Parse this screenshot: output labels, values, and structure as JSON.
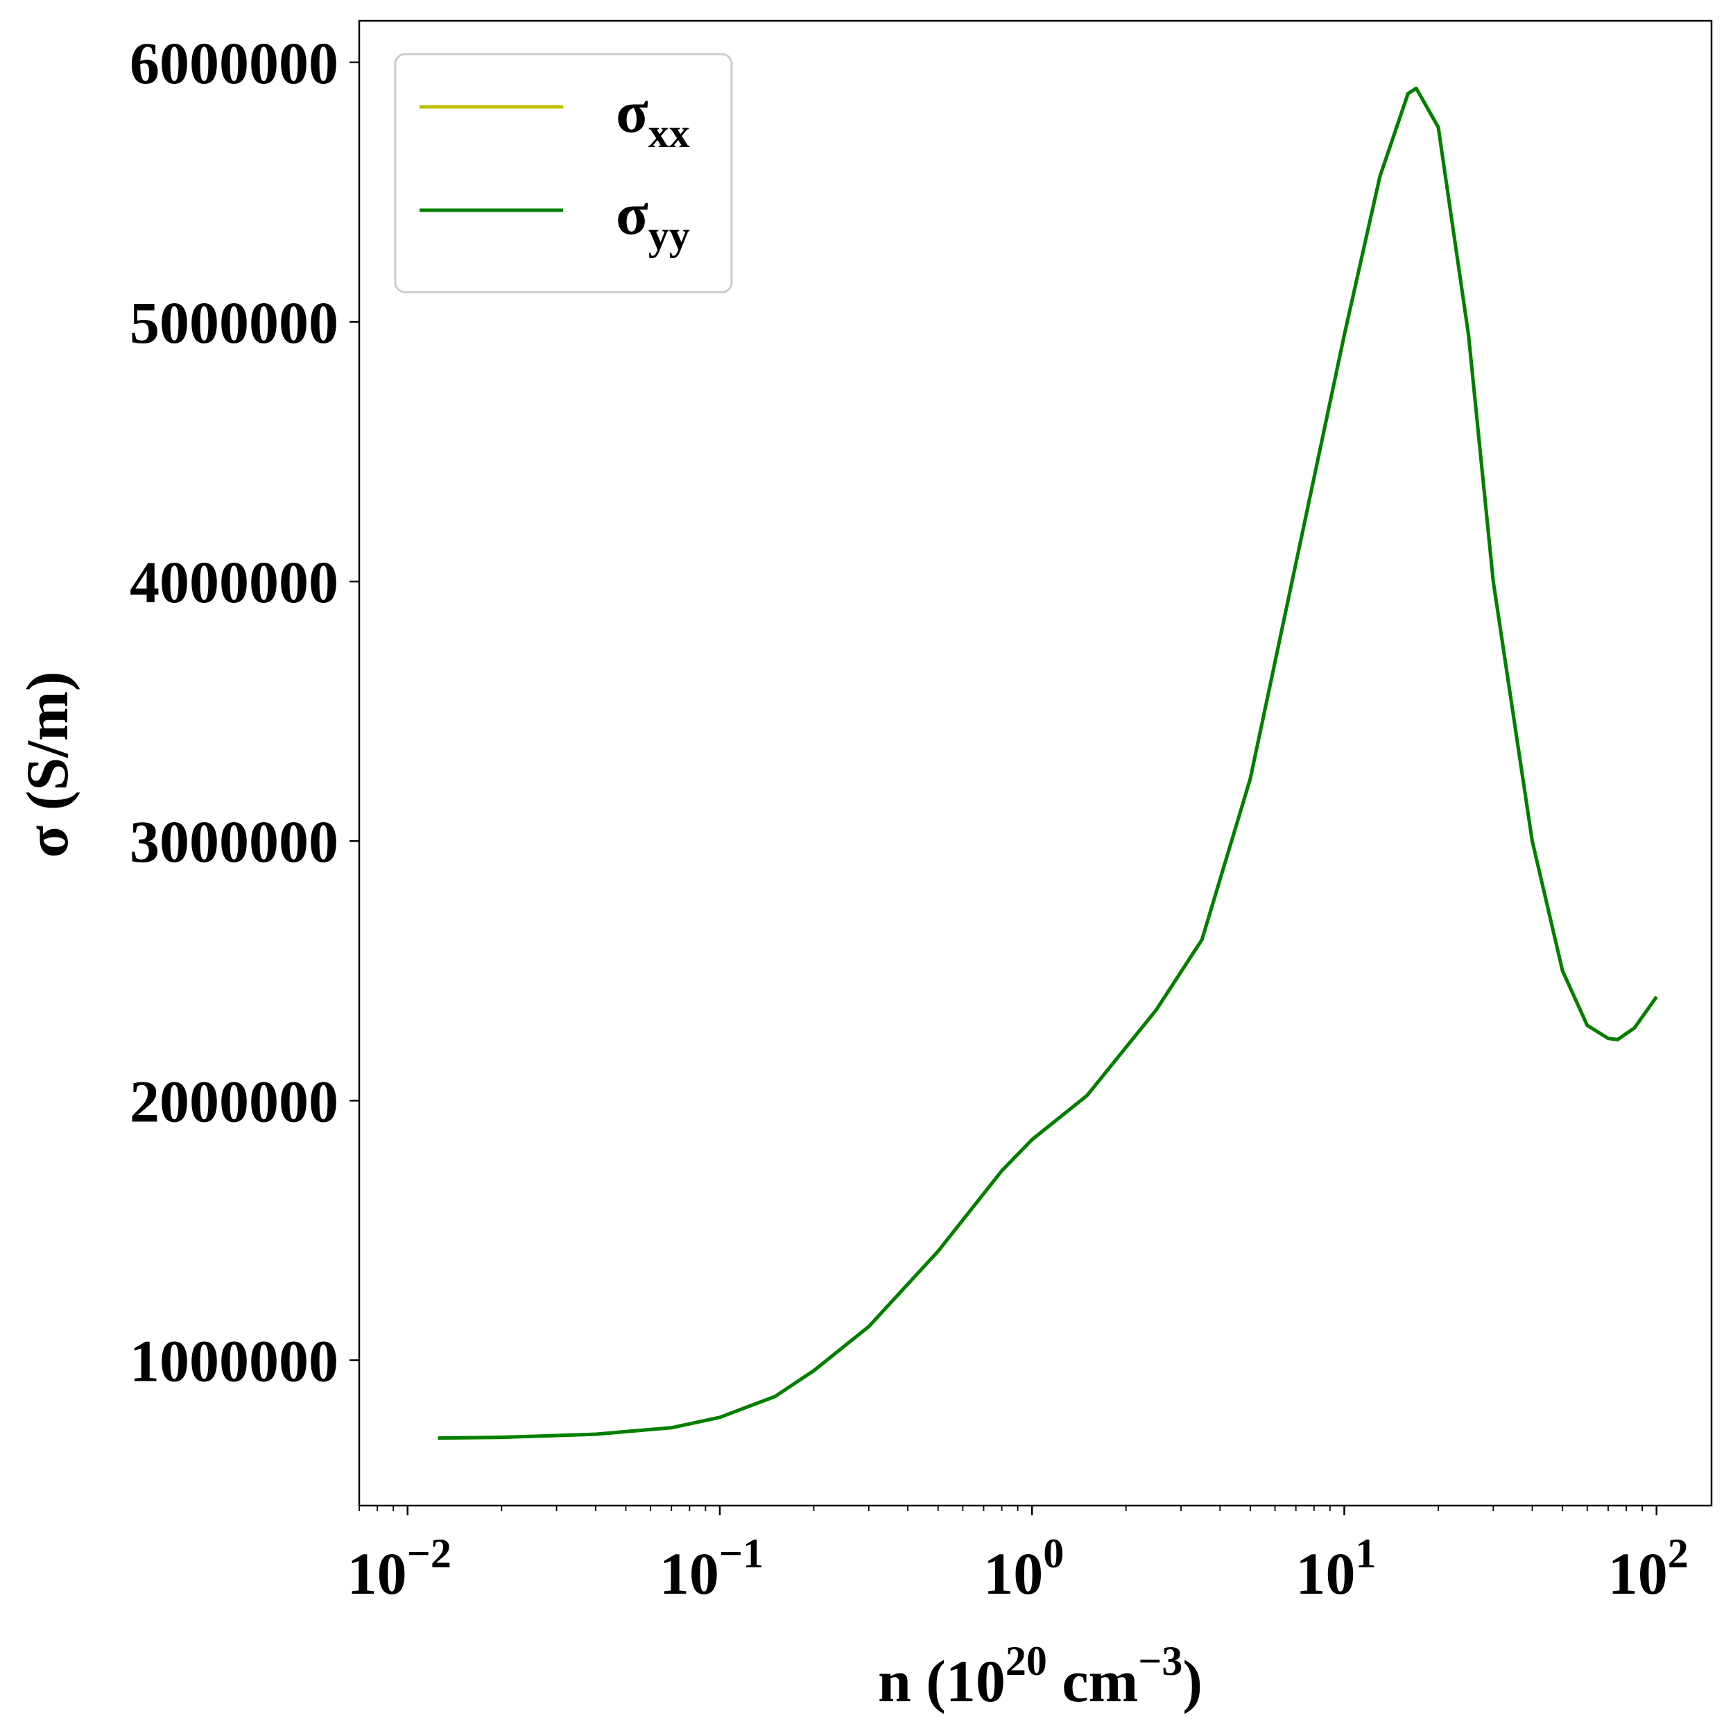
{
  "chart_data": {
    "type": "line",
    "title": "",
    "xlabel": {
      "base": "n (10",
      "sup1": "20",
      "mid": " cm",
      "sup2": "−3",
      "end": ")"
    },
    "ylabel": "σ (S/m)",
    "xscale": "log",
    "xlim": [
      0.007,
      150
    ],
    "ylim": [
      440000,
      6160000
    ],
    "grid": false,
    "legend_position": "top-left",
    "x_ticks": [
      {
        "value": 0.01,
        "base": "10",
        "exp": "−2"
      },
      {
        "value": 0.1,
        "base": "10",
        "exp": "−1"
      },
      {
        "value": 1,
        "base": "10",
        "exp": "0"
      },
      {
        "value": 10,
        "base": "10",
        "exp": "1"
      },
      {
        "value": 100,
        "base": "10",
        "exp": "2"
      }
    ],
    "y_ticks": [
      {
        "value": 1000000,
        "label": "1000000"
      },
      {
        "value": 2000000,
        "label": "2000000"
      },
      {
        "value": 3000000,
        "label": "3000000"
      },
      {
        "value": 4000000,
        "label": "4000000"
      },
      {
        "value": 5000000,
        "label": "5000000"
      },
      {
        "value": 6000000,
        "label": "6000000"
      }
    ],
    "series": [
      {
        "name": "σ",
        "name_sub": "xx",
        "color": "#bfbf00",
        "x": [
          0.0125,
          0.02,
          0.04,
          0.07,
          0.1,
          0.15,
          0.2,
          0.3,
          0.5,
          0.8,
          1.0,
          1.5,
          2.5,
          3.5,
          5,
          7,
          10,
          13,
          16,
          17,
          20,
          25,
          30,
          40,
          50,
          60,
          70,
          75,
          85,
          100
        ],
        "y": [
          700000,
          703000,
          715000,
          740000,
          780000,
          860000,
          960000,
          1130000,
          1420000,
          1730000,
          1850000,
          2020000,
          2350000,
          2620000,
          3240000,
          4070000,
          4950000,
          5560000,
          5880000,
          5900000,
          5750000,
          4950000,
          4000000,
          3000000,
          2500000,
          2290000,
          2240000,
          2235000,
          2280000,
          2400000
        ]
      },
      {
        "name": "σ",
        "name_sub": "yy",
        "color": "#007f00",
        "x": [
          0.0125,
          0.02,
          0.04,
          0.07,
          0.1,
          0.15,
          0.2,
          0.3,
          0.5,
          0.8,
          1.0,
          1.5,
          2.5,
          3.5,
          5,
          7,
          10,
          13,
          16,
          17,
          20,
          25,
          30,
          40,
          50,
          60,
          70,
          75,
          85,
          100
        ],
        "y": [
          700000,
          703000,
          715000,
          740000,
          780000,
          860000,
          960000,
          1130000,
          1420000,
          1730000,
          1850000,
          2020000,
          2350000,
          2620000,
          3240000,
          4070000,
          4950000,
          5560000,
          5880000,
          5900000,
          5750000,
          4950000,
          4000000,
          3000000,
          2500000,
          2290000,
          2240000,
          2235000,
          2280000,
          2400000
        ]
      }
    ]
  }
}
